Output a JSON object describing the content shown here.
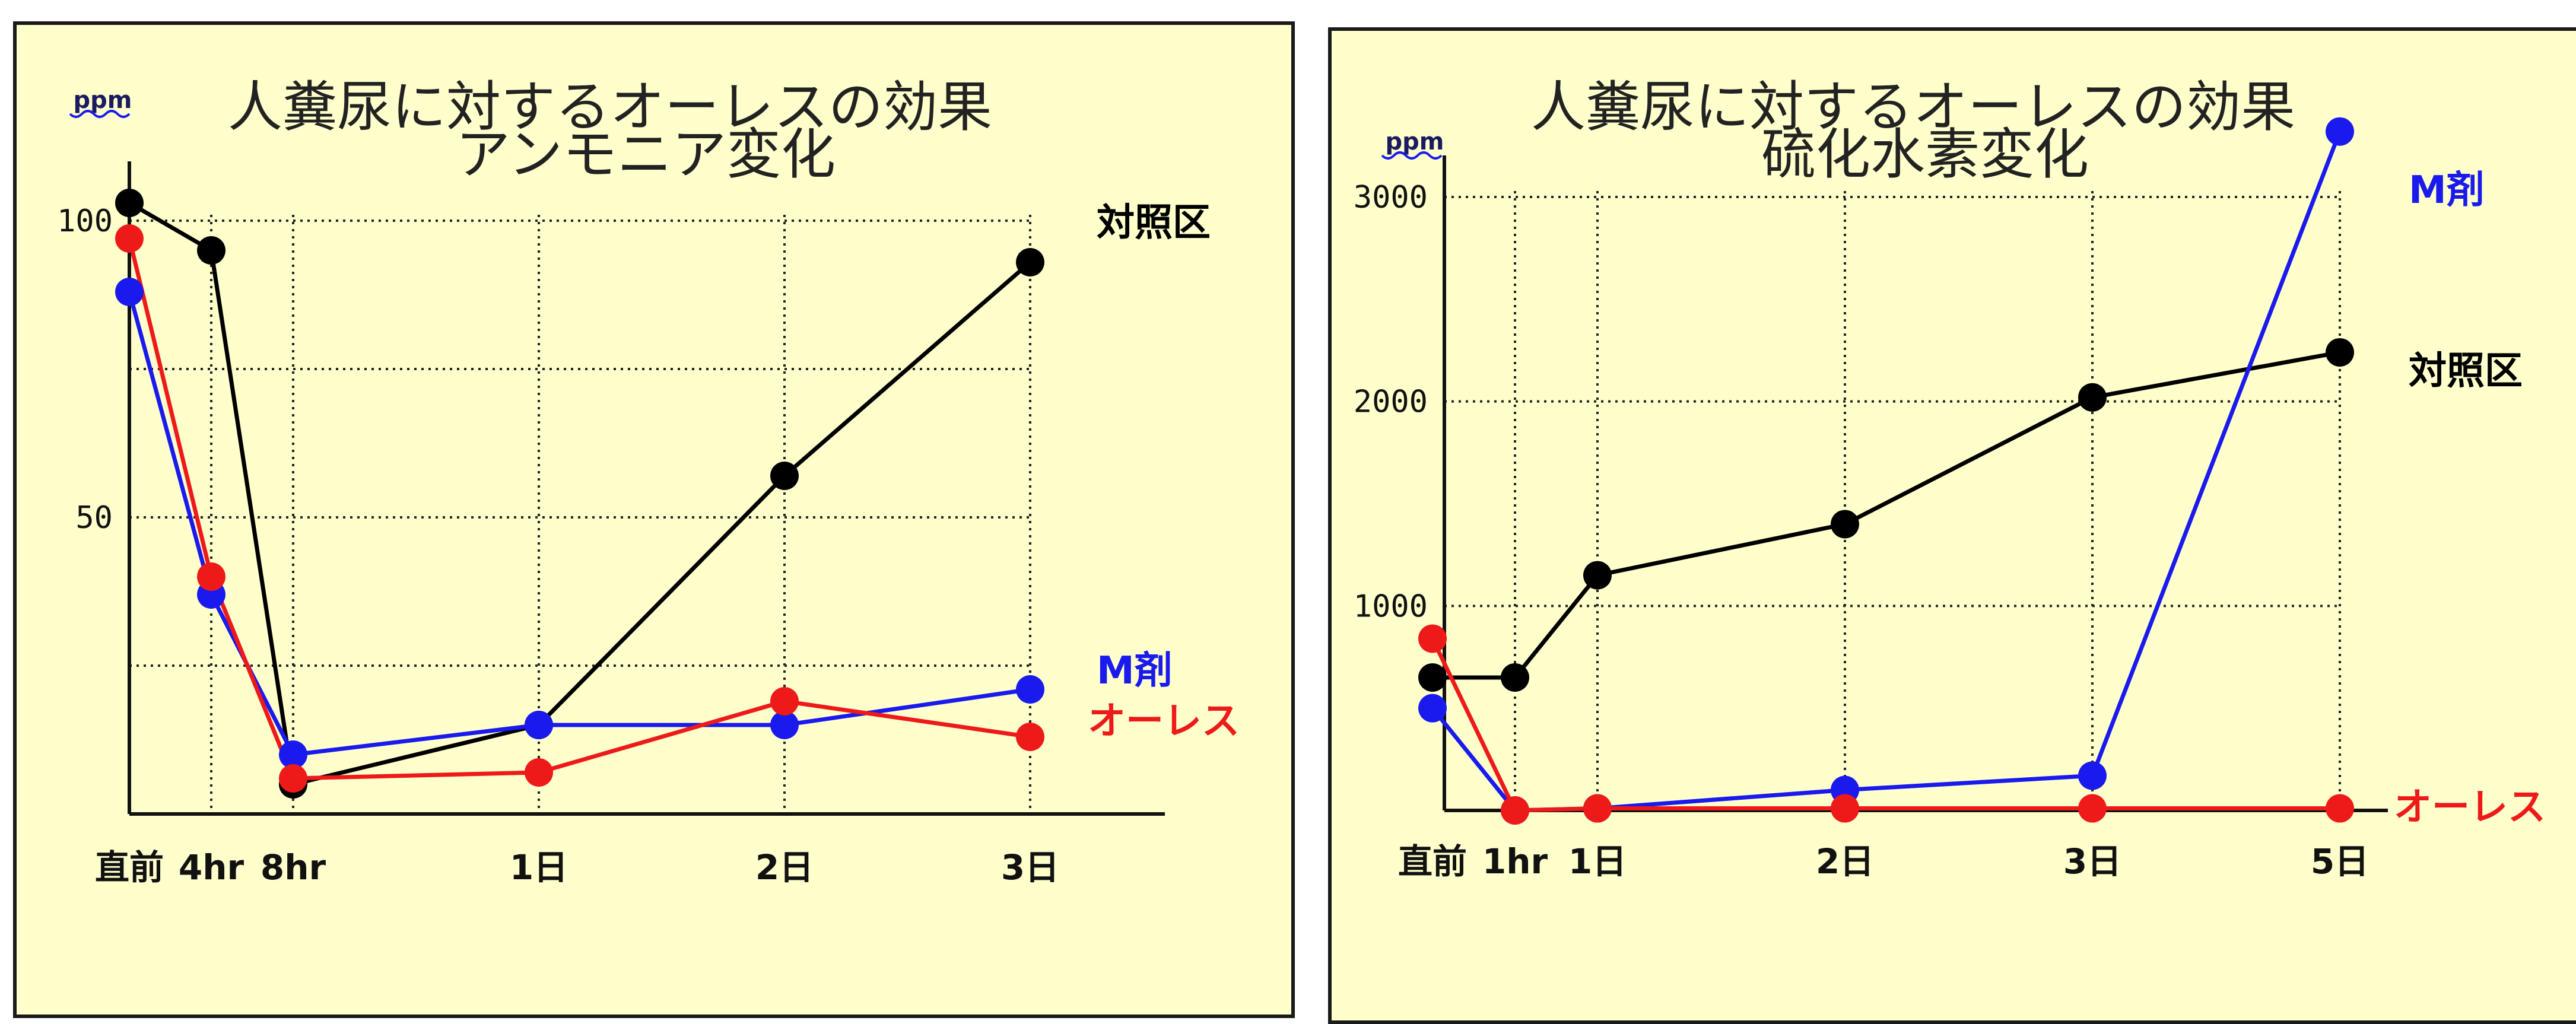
{
  "colors": {
    "control": "#000000",
    "m_agent": "#1a1aee",
    "oless": "#ee1a1a",
    "panel_bg": "#ffffcc"
  },
  "chart_data": [
    {
      "type": "line",
      "title": "人糞尿に対するオーレスの効果",
      "subtitle": "アンモニア変化",
      "ylabel": "ppm",
      "ylim": [
        0,
        110
      ],
      "grid": true,
      "categories": [
        "直前",
        "4hr",
        "8hr",
        "1日",
        "2日",
        "3日"
      ],
      "x_positions": [
        0,
        1,
        2,
        5,
        8,
        11
      ],
      "yticks": [
        {
          "value": 100,
          "label": "100"
        },
        {
          "value": 50,
          "label": "50"
        }
      ],
      "series": [
        {
          "name": "対照区",
          "color": "#000000",
          "values": [
            103,
            95,
            5,
            15,
            57,
            93
          ]
        },
        {
          "name": "M剤",
          "color": "#1a1aee",
          "values": [
            88,
            37,
            10,
            15,
            15,
            21
          ]
        },
        {
          "name": "オーレス",
          "color": "#ee1a1a",
          "values": [
            97,
            40,
            6,
            7,
            19,
            13
          ]
        }
      ]
    },
    {
      "type": "line",
      "title": "人糞尿に対するオーレスの効果",
      "subtitle": "硫化水素変化",
      "ylabel": "ppm",
      "ylim": [
        0,
        3300
      ],
      "grid": true,
      "categories": [
        "直前",
        "1hr",
        "1日",
        "2日",
        "3日",
        "5日"
      ],
      "x_positions": [
        0,
        1,
        2,
        5,
        8,
        11
      ],
      "yticks": [
        {
          "value": 3000,
          "label": "3000"
        },
        {
          "value": 2000,
          "label": "2000"
        },
        {
          "value": 1000,
          "label": "1000"
        }
      ],
      "series": [
        {
          "name": "対照区",
          "color": "#000000",
          "values": [
            650,
            650,
            1150,
            1400,
            2020,
            2240
          ]
        },
        {
          "name": "M剤",
          "color": "#1a1aee",
          "values": [
            500,
            0,
            10,
            100,
            170,
            3320
          ]
        },
        {
          "name": "オーレス",
          "color": "#ee1a1a",
          "values": [
            840,
            0,
            10,
            10,
            10,
            10
          ]
        }
      ]
    }
  ]
}
